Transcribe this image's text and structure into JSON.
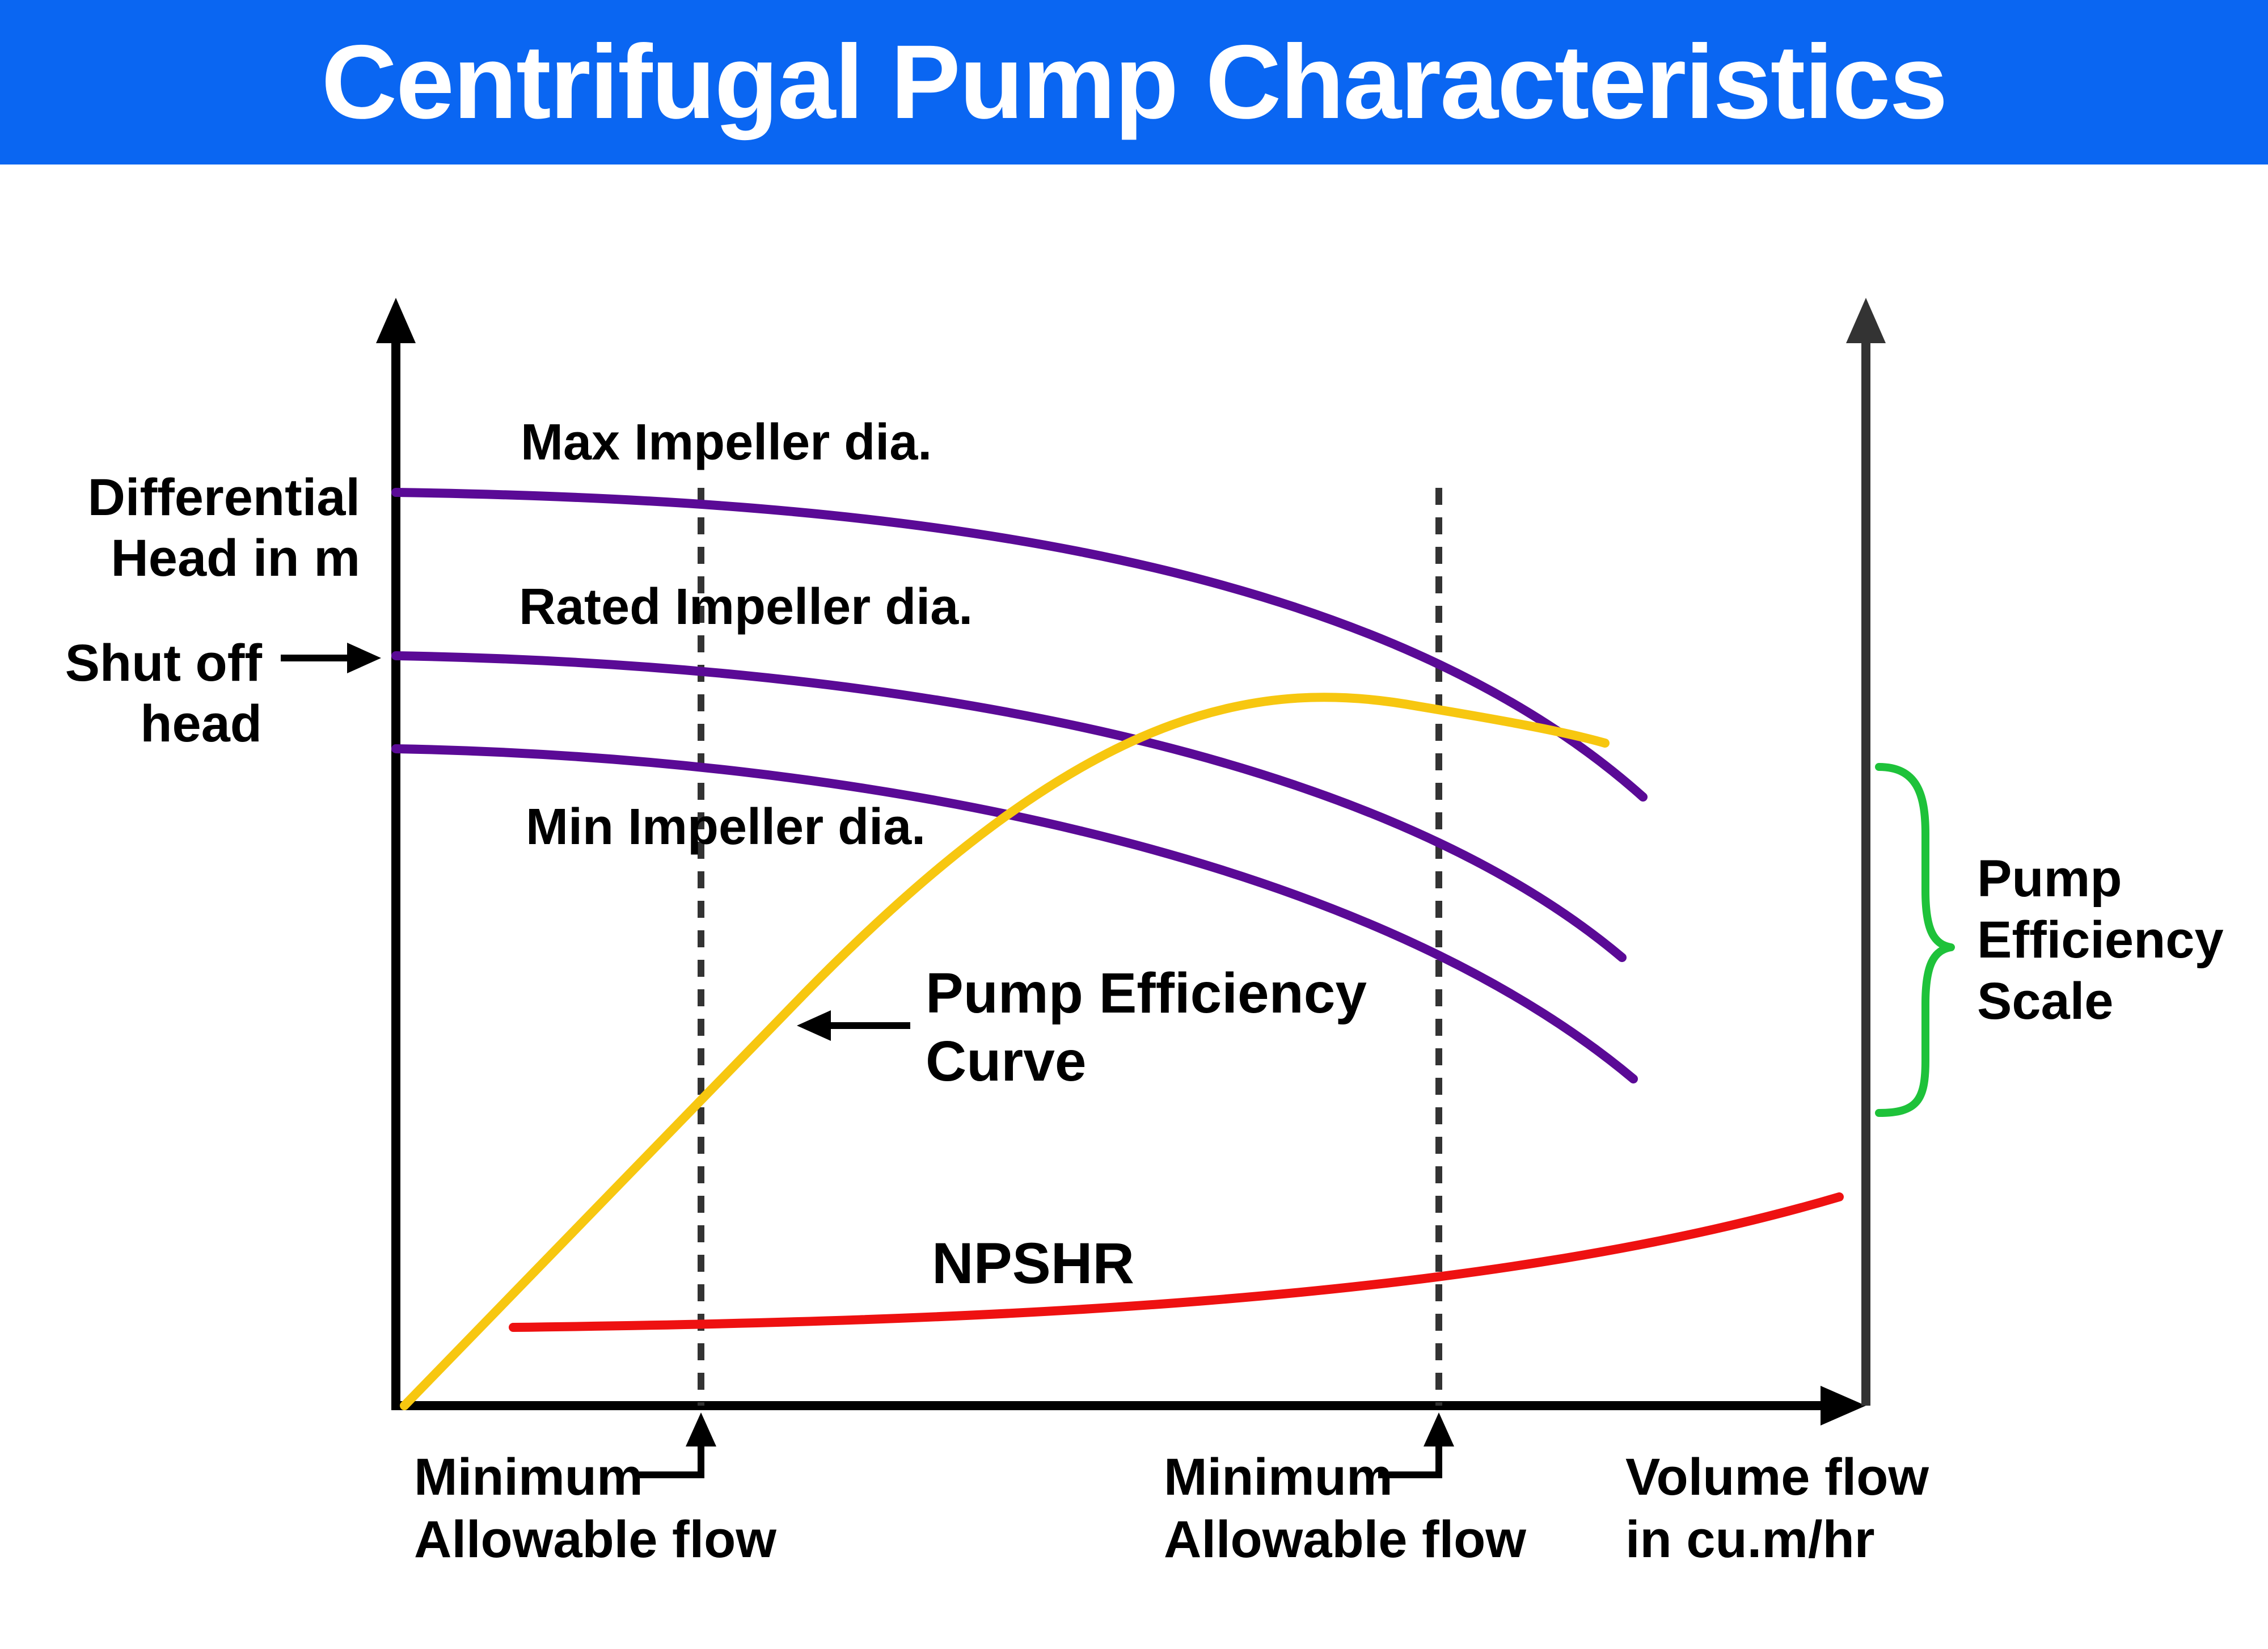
{
  "title": "Centrifugal Pump Characteristics",
  "colors": {
    "header_bg": "#0a66f2",
    "header_text": "#ffffff",
    "impeller_curves": "#5a0a96",
    "efficiency_curve": "#f7c710",
    "npshr_curve": "#ee1111",
    "efficiency_bracket": "#1ec23a",
    "axis": "#000000",
    "right_axis": "#333333",
    "dashed_lines": "#333333"
  },
  "labels": {
    "y_axis_line1": "Differential",
    "y_axis_line2": "Head in m",
    "shutoff_line1": "Shut off",
    "shutoff_line2": "head",
    "max_impeller": "Max Impeller dia.",
    "rated_impeller": "Rated Impeller dia.",
    "min_impeller": "Min Impeller dia.",
    "efficiency_curve_line1": "Pump Efficiency",
    "efficiency_curve_line2": "Curve",
    "npshr": "NPSHR",
    "efficiency_scale_line1": "Pump",
    "efficiency_scale_line2": "Efficiency",
    "efficiency_scale_line3": "Scale",
    "min_flow_left_line1": "Minimum",
    "min_flow_left_line2": "Allowable flow",
    "min_flow_right_line1": "Minimum",
    "min_flow_right_line2": "Allowable flow",
    "x_axis_line1": "Volume flow",
    "x_axis_line2": "in cu.m/hr"
  }
}
